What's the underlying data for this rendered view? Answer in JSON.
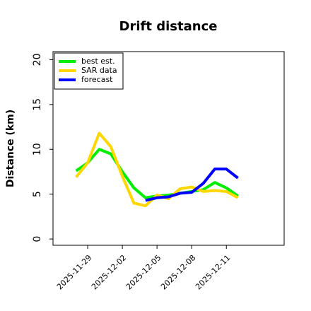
{
  "chart_data": {
    "type": "line",
    "title": "Drift distance",
    "ylabel": "Distance (km)",
    "x": [
      "2025-11-28",
      "2025-11-29",
      "2025-11-30",
      "2025-12-01",
      "2025-12-02",
      "2025-12-03",
      "2025-12-04",
      "2025-12-05",
      "2025-12-06",
      "2025-12-07",
      "2025-12-08",
      "2025-12-09",
      "2025-12-10",
      "2025-12-11",
      "2025-12-12"
    ],
    "series": [
      {
        "name": "best est.",
        "color": "#00ee00",
        "values": [
          7.6,
          8.5,
          10.0,
          9.5,
          7.5,
          5.7,
          4.6,
          4.8,
          4.9,
          5.1,
          5.3,
          5.5,
          6.3,
          5.7,
          4.8
        ]
      },
      {
        "name": "SAR data",
        "color": "#ffd700",
        "values": [
          6.9,
          8.5,
          11.8,
          10.3,
          7.0,
          4.0,
          3.7,
          4.9,
          4.5,
          5.6,
          5.8,
          5.3,
          5.4,
          5.3,
          4.6
        ]
      },
      {
        "name": "forecast",
        "color": "#0000ff",
        "values": [
          null,
          null,
          null,
          null,
          null,
          null,
          4.3,
          4.6,
          4.7,
          5.1,
          5.2,
          6.2,
          7.8,
          7.8,
          6.8
        ]
      }
    ],
    "xlim": [
      "2025-11-26",
      "2025-12-16"
    ],
    "xticks": [
      "2025-11-29",
      "2025-12-02",
      "2025-12-05",
      "2025-12-08",
      "2025-12-11"
    ],
    "ylim": [
      -0.7,
      20.9
    ],
    "yticks": [
      0,
      5,
      10,
      15,
      20
    ],
    "legend": "upper left",
    "grid": false
  }
}
